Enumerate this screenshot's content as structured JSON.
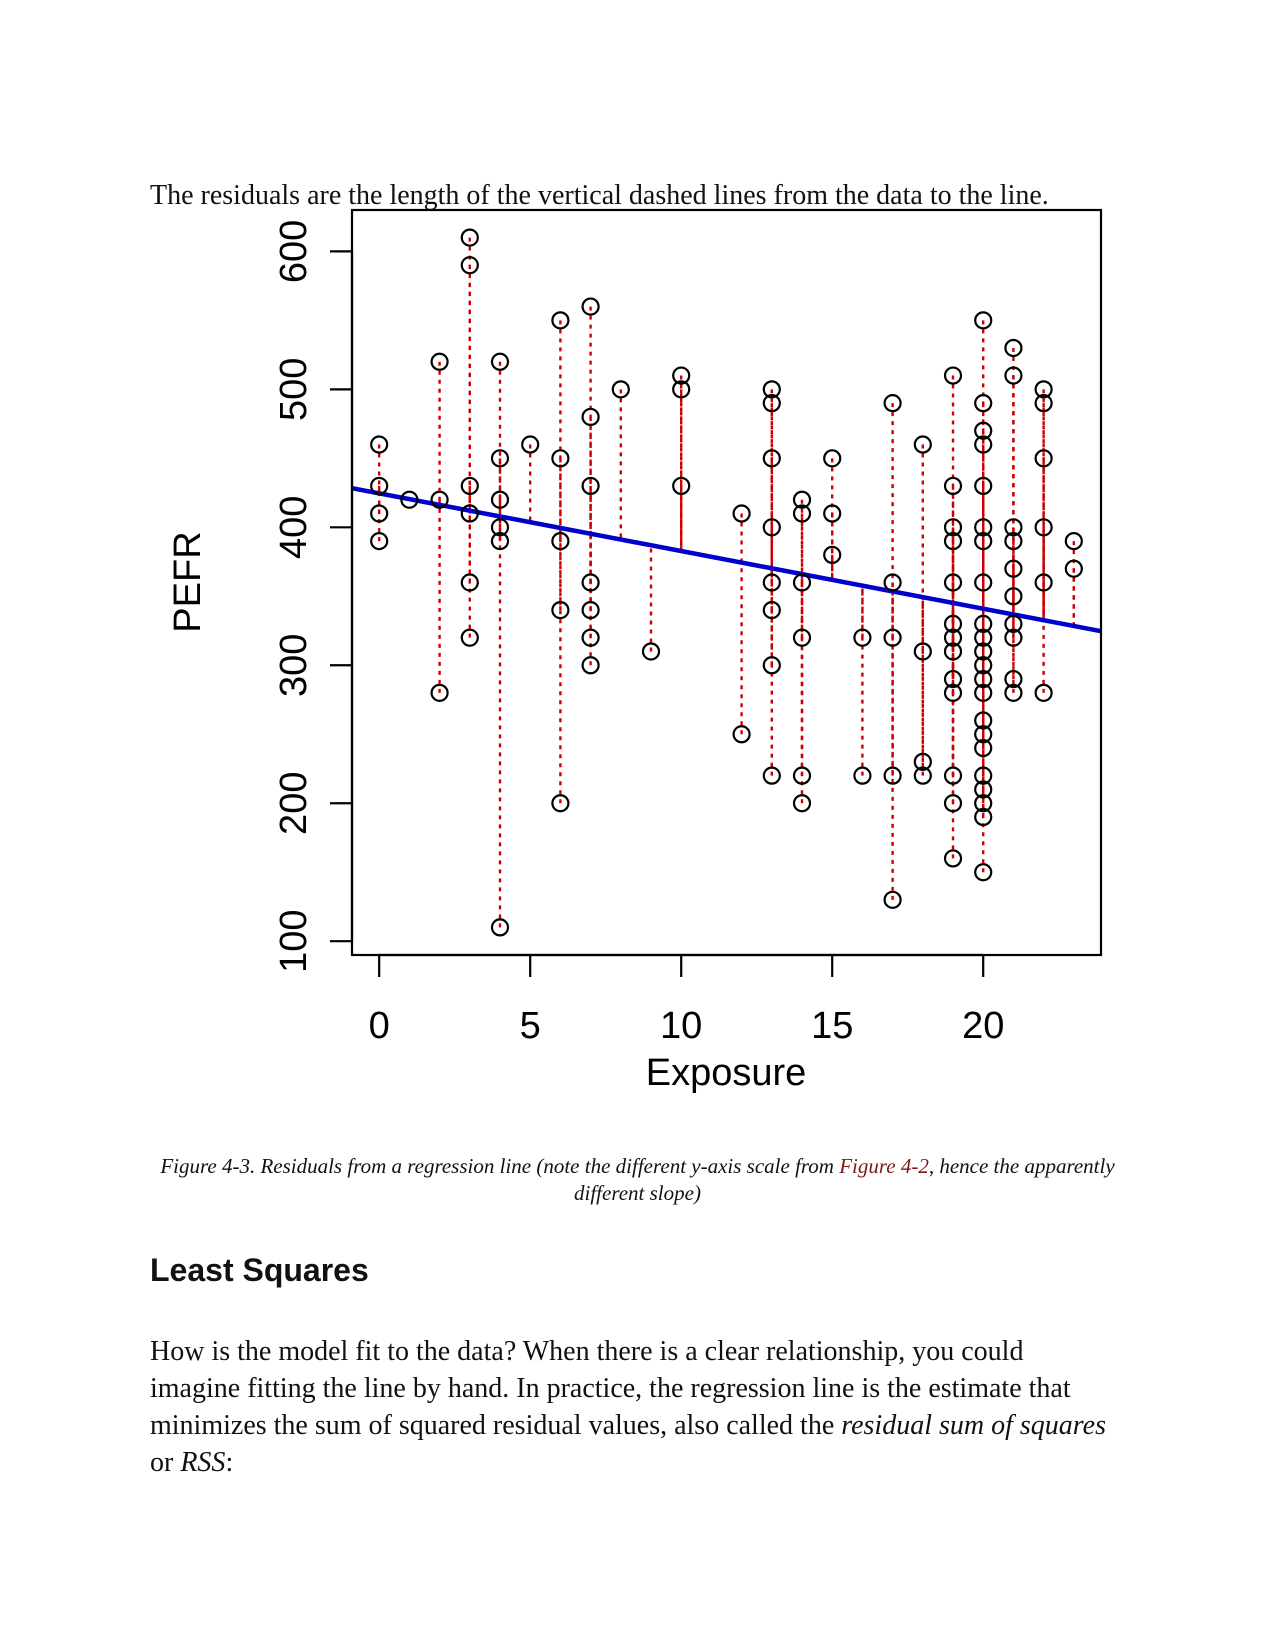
{
  "intro_text": "The residuals are the length of the vertical dashed lines from the data to the line.",
  "caption": {
    "prefix": "Figure 4-3. Residuals from a regression line (note the different y-axis scale from ",
    "link": "Figure 4-2",
    "suffix": ", hence the apparently different slope)"
  },
  "section_heading": "Least Squares",
  "body": {
    "part1": "How is the model fit to the data? When there is a clear relationship, you could imagine fitting the line by hand. In practice, the regression line is the estimate that minimizes the sum of squared residual values, also called the ",
    "em1": "residual sum of squares",
    "part2": " or ",
    "em2": "RSS",
    "part3": ":"
  },
  "chart_data": {
    "type": "scatter",
    "title": "",
    "xlabel": "Exposure",
    "ylabel": "PEFR",
    "xlim": [
      -0.9,
      23.9
    ],
    "ylim": [
      90,
      630
    ],
    "x_ticks": [
      0,
      5,
      10,
      15,
      20
    ],
    "y_ticks": [
      100,
      200,
      300,
      400,
      500,
      600
    ],
    "grid": false,
    "regression_line": {
      "intercept": 424.6,
      "slope": -4.18,
      "color": "#0000cc"
    },
    "residual_color": "#cc0000",
    "point_color": "#000000",
    "points": [
      [
        0,
        390
      ],
      [
        0,
        410
      ],
      [
        0,
        430
      ],
      [
        0,
        460
      ],
      [
        1,
        420
      ],
      [
        2,
        280
      ],
      [
        2,
        420
      ],
      [
        2,
        520
      ],
      [
        3,
        320
      ],
      [
        3,
        360
      ],
      [
        3,
        410
      ],
      [
        3,
        430
      ],
      [
        3,
        590
      ],
      [
        3,
        610
      ],
      [
        4,
        110
      ],
      [
        4,
        390
      ],
      [
        4,
        400
      ],
      [
        4,
        420
      ],
      [
        4,
        450
      ],
      [
        4,
        520
      ],
      [
        5,
        460
      ],
      [
        6,
        200
      ],
      [
        6,
        340
      ],
      [
        6,
        390
      ],
      [
        6,
        450
      ],
      [
        6,
        550
      ],
      [
        7,
        300
      ],
      [
        7,
        320
      ],
      [
        7,
        340
      ],
      [
        7,
        360
      ],
      [
        7,
        430
      ],
      [
        7,
        480
      ],
      [
        7,
        560
      ],
      [
        8,
        500
      ],
      [
        9,
        310
      ],
      [
        10,
        430
      ],
      [
        10,
        500
      ],
      [
        10,
        510
      ],
      [
        12,
        250
      ],
      [
        12,
        410
      ],
      [
        13,
        220
      ],
      [
        13,
        300
      ],
      [
        13,
        340
      ],
      [
        13,
        360
      ],
      [
        13,
        400
      ],
      [
        13,
        450
      ],
      [
        13,
        490
      ],
      [
        13,
        500
      ],
      [
        14,
        200
      ],
      [
        14,
        220
      ],
      [
        14,
        320
      ],
      [
        14,
        360
      ],
      [
        14,
        410
      ],
      [
        14,
        420
      ],
      [
        15,
        380
      ],
      [
        15,
        410
      ],
      [
        15,
        450
      ],
      [
        16,
        220
      ],
      [
        16,
        320
      ],
      [
        17,
        130
      ],
      [
        17,
        220
      ],
      [
        17,
        320
      ],
      [
        17,
        360
      ],
      [
        17,
        490
      ],
      [
        18,
        220
      ],
      [
        18,
        230
      ],
      [
        18,
        310
      ],
      [
        18,
        460
      ],
      [
        19,
        160
      ],
      [
        19,
        200
      ],
      [
        19,
        220
      ],
      [
        19,
        280
      ],
      [
        19,
        290
      ],
      [
        19,
        310
      ],
      [
        19,
        320
      ],
      [
        19,
        330
      ],
      [
        19,
        360
      ],
      [
        19,
        390
      ],
      [
        19,
        400
      ],
      [
        19,
        430
      ],
      [
        19,
        510
      ],
      [
        20,
        150
      ],
      [
        20,
        190
      ],
      [
        20,
        200
      ],
      [
        20,
        210
      ],
      [
        20,
        220
      ],
      [
        20,
        240
      ],
      [
        20,
        250
      ],
      [
        20,
        260
      ],
      [
        20,
        280
      ],
      [
        20,
        290
      ],
      [
        20,
        300
      ],
      [
        20,
        310
      ],
      [
        20,
        320
      ],
      [
        20,
        330
      ],
      [
        20,
        360
      ],
      [
        20,
        390
      ],
      [
        20,
        400
      ],
      [
        20,
        430
      ],
      [
        20,
        460
      ],
      [
        20,
        470
      ],
      [
        20,
        490
      ],
      [
        20,
        550
      ],
      [
        21,
        280
      ],
      [
        21,
        290
      ],
      [
        21,
        320
      ],
      [
        21,
        330
      ],
      [
        21,
        350
      ],
      [
        21,
        370
      ],
      [
        21,
        390
      ],
      [
        21,
        400
      ],
      [
        21,
        510
      ],
      [
        21,
        530
      ],
      [
        22,
        280
      ],
      [
        22,
        360
      ],
      [
        22,
        400
      ],
      [
        22,
        450
      ],
      [
        22,
        490
      ],
      [
        22,
        500
      ],
      [
        23,
        370
      ],
      [
        23,
        390
      ]
    ]
  }
}
